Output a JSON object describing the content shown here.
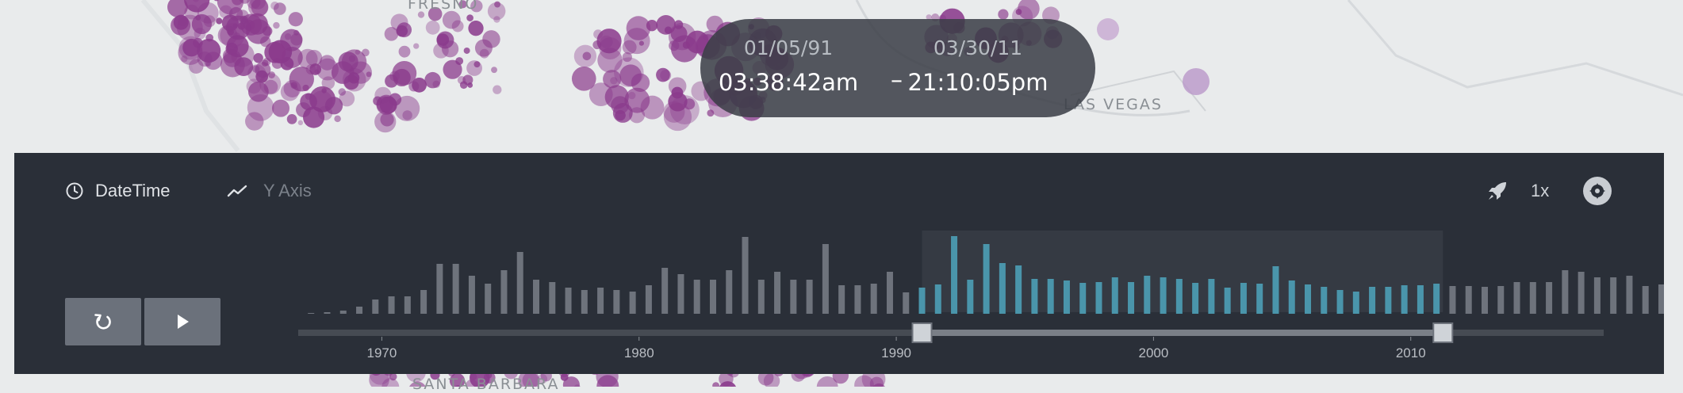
{
  "map": {
    "labels": [
      "FRESNO",
      "LAS VEGAS",
      "SANTA BARBARA"
    ]
  },
  "time_display": {
    "start_date": "01/05/91",
    "start_time": "03:38:42am",
    "separator": "–",
    "end_date": "03/30/11",
    "end_time": "21:10:05pm"
  },
  "toolbar": {
    "datetime_label": "DateTime",
    "yaxis_label": "Y Axis",
    "speed_label": "1x"
  },
  "icons": {
    "datetime": "clock-icon",
    "yaxis": "trend-line-icon",
    "speed": "rocket-icon",
    "settings": "gear-icon",
    "reset": "reset-icon",
    "play": "play-icon"
  },
  "colors": {
    "panel_bg": "#2a2f38",
    "bar_default": "#6e737c",
    "bar_selected": "#4a95ab",
    "handle": "#cfd3d8",
    "point": "#8a3a8c"
  },
  "chart_data": {
    "type": "bar",
    "x_ticks": [
      1970,
      1980,
      1990,
      2000,
      2010
    ],
    "xlim": [
      1966.75,
      2017.5
    ],
    "bar_start": 1967.25,
    "bar_step": 0.625,
    "selection": {
      "start": 1991.0,
      "end": 2011.25
    },
    "values": [
      1,
      2,
      4,
      9,
      18,
      22,
      22,
      30,
      63,
      63,
      48,
      38,
      55,
      78,
      43,
      40,
      33,
      30,
      33,
      30,
      28,
      36,
      58,
      50,
      43,
      43,
      55,
      97,
      43,
      53,
      43,
      43,
      88,
      36,
      36,
      38,
      53,
      27,
      33,
      37,
      98,
      43,
      88,
      64,
      61,
      44,
      44,
      42,
      39,
      40,
      46,
      40,
      48,
      46,
      44,
      39,
      44,
      33,
      39,
      38,
      60,
      42,
      37,
      34,
      30,
      28,
      34,
      34,
      36,
      36,
      38,
      35,
      35,
      34,
      35,
      40,
      40,
      40,
      55,
      53,
      46,
      46,
      48,
      35,
      37,
      37
    ]
  }
}
